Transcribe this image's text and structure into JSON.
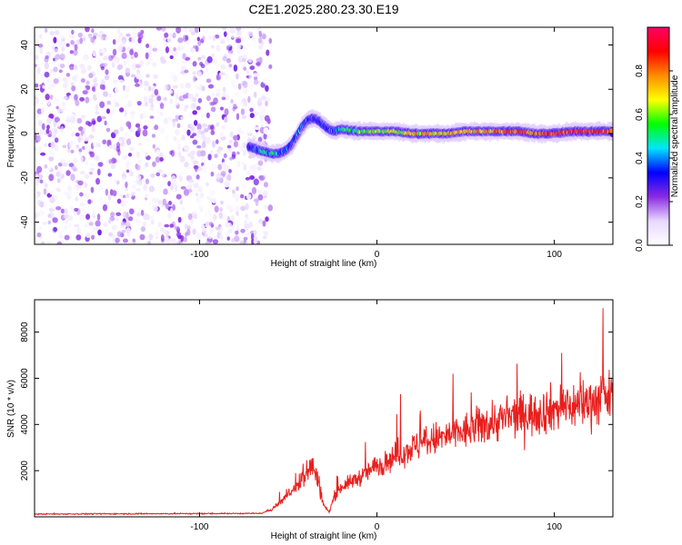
{
  "title": "C2E1.2025.280.23.30.E19",
  "chart_data": [
    {
      "type": "heatmap",
      "name": "spectrogram",
      "xlabel": "Height of straight line (km)",
      "ylabel": "Frequency (Hz)",
      "xlim": [
        -193,
        133
      ],
      "ylim": [
        -50,
        48
      ],
      "xticks": [
        -100,
        0,
        100
      ],
      "yticks": [
        -40,
        -20,
        0,
        20,
        40
      ],
      "noise_region": {
        "x": [
          -193,
          -60
        ],
        "y": [
          -50,
          48
        ],
        "amplitude_range": [
          0.02,
          0.25
        ]
      },
      "signal_track": [
        {
          "x": -72,
          "y": -6,
          "amp": 0.2
        },
        {
          "x": -68,
          "y": -7,
          "amp": 0.35
        },
        {
          "x": -64,
          "y": -8,
          "amp": 0.45
        },
        {
          "x": -60,
          "y": -9,
          "amp": 0.45
        },
        {
          "x": -56,
          "y": -9,
          "amp": 0.42
        },
        {
          "x": -52,
          "y": -8,
          "amp": 0.4
        },
        {
          "x": -48,
          "y": -5,
          "amp": 0.38
        },
        {
          "x": -45,
          "y": -1,
          "amp": 0.36
        },
        {
          "x": -42,
          "y": 3,
          "amp": 0.32
        },
        {
          "x": -39,
          "y": 6,
          "amp": 0.3
        },
        {
          "x": -36,
          "y": 7,
          "amp": 0.28
        },
        {
          "x": -33,
          "y": 6,
          "amp": 0.3
        },
        {
          "x": -30,
          "y": 4,
          "amp": 0.32
        },
        {
          "x": -27,
          "y": 2,
          "amp": 0.35
        },
        {
          "x": -24,
          "y": 1,
          "amp": 0.4
        },
        {
          "x": -20,
          "y": 2,
          "amp": 0.45
        },
        {
          "x": -10,
          "y": 1,
          "amp": 0.55
        },
        {
          "x": 0,
          "y": 1,
          "amp": 0.6
        },
        {
          "x": 10,
          "y": 1,
          "amp": 0.65
        },
        {
          "x": 20,
          "y": 0,
          "amp": 0.7
        },
        {
          "x": 30,
          "y": 0,
          "amp": 0.72
        },
        {
          "x": 40,
          "y": 0,
          "amp": 0.72
        },
        {
          "x": 50,
          "y": 1,
          "amp": 0.75
        },
        {
          "x": 60,
          "y": 1,
          "amp": 0.78
        },
        {
          "x": 70,
          "y": 1,
          "amp": 0.8
        },
        {
          "x": 80,
          "y": 1,
          "amp": 0.82
        },
        {
          "x": 90,
          "y": 0,
          "amp": 0.82
        },
        {
          "x": 100,
          "y": 0,
          "amp": 0.85
        },
        {
          "x": 110,
          "y": 1,
          "amp": 0.86
        },
        {
          "x": 120,
          "y": 1,
          "amp": 0.88
        },
        {
          "x": 133,
          "y": 1,
          "amp": 0.88
        }
      ],
      "colorbar": {
        "label": "Normalized spectral amplitude",
        "range": [
          0.0,
          1.0
        ],
        "ticks": [
          "0.0",
          "0.2",
          "0.4",
          "0.6",
          "0.8"
        ],
        "colors": [
          "#ffffff",
          "#e8d8ff",
          "#8a2be2",
          "#0000ff",
          "#00e5ff",
          "#00ff00",
          "#ffff00",
          "#ff8c00",
          "#ff0000",
          "#ff0066"
        ]
      }
    },
    {
      "type": "line",
      "name": "snr",
      "xlabel": "Height of straight line (km)",
      "ylabel": "SNR (10 * v/v)",
      "xlim": [
        -193,
        133
      ],
      "ylim": [
        0,
        9400
      ],
      "xticks": [
        -100,
        0,
        100
      ],
      "yticks": [
        2000,
        4000,
        6000,
        8000
      ],
      "color": "#e8201e",
      "series": [
        {
          "name": "SNR",
          "trend": [
            [
              -193,
              120
            ],
            [
              -150,
              130
            ],
            [
              -100,
              140
            ],
            [
              -65,
              150
            ],
            [
              -60,
              300
            ],
            [
              -55,
              600
            ],
            [
              -50,
              1000
            ],
            [
              -45,
              1300
            ],
            [
              -42,
              1700
            ],
            [
              -38,
              2300
            ],
            [
              -35,
              2000
            ],
            [
              -32,
              1200
            ],
            [
              -30,
              500
            ],
            [
              -27,
              200
            ],
            [
              -24,
              900
            ],
            [
              -20,
              1300
            ],
            [
              -15,
              1500
            ],
            [
              -10,
              1700
            ],
            [
              0,
              2200
            ],
            [
              10,
              2600
            ],
            [
              20,
              3000
            ],
            [
              30,
              3300
            ],
            [
              40,
              3500
            ],
            [
              50,
              3700
            ],
            [
              60,
              4000
            ],
            [
              70,
              4200
            ],
            [
              80,
              4400
            ],
            [
              90,
              4500
            ],
            [
              100,
              4700
            ],
            [
              110,
              4800
            ],
            [
              120,
              5000
            ],
            [
              133,
              5200
            ]
          ]
        }
      ]
    }
  ]
}
